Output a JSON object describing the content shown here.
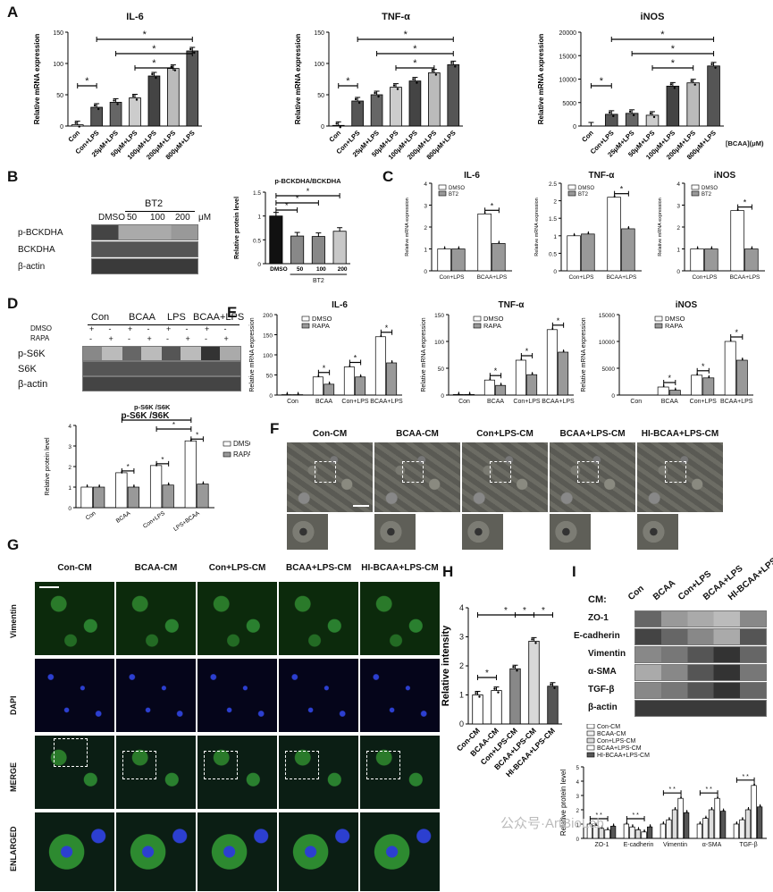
{
  "panels": {
    "A": "A",
    "B": "B",
    "C": "C",
    "D": "D",
    "E": "E",
    "F": "F",
    "G": "G",
    "H": "H",
    "I": "I"
  },
  "colors": {
    "bar_dark": "#555555",
    "bar_light": "#c8c8c8",
    "bar_white": "#ffffff",
    "bar_black": "#111111",
    "green": "#2f9a3a",
    "blue": "#2a3fd8"
  },
  "panelA": {
    "charts": [
      {
        "title": "IL-6",
        "ylabel": "Relative mRNA expression",
        "categories": [
          "Con",
          "Con+LPS",
          "25μM+LPS",
          "50μM+LPS",
          "100μM+LPS",
          "200μM+LPS",
          "800μM+LPS"
        ],
        "values": [
          2,
          30,
          38,
          45,
          80,
          92,
          120
        ],
        "ylim": [
          0,
          150
        ],
        "yticks": [
          0,
          50,
          100,
          150
        ],
        "sig": "*"
      },
      {
        "title": "TNF-α",
        "ylabel": "Relative mRNA expression",
        "categories": [
          "Con",
          "Con+LPS",
          "25μM+LPS",
          "50μM+LPS",
          "100μM+LPS",
          "200μM+LPS",
          "800μM+LPS"
        ],
        "values": [
          1,
          40,
          50,
          62,
          72,
          85,
          98
        ],
        "ylim": [
          0,
          150
        ],
        "yticks": [
          0,
          50,
          100,
          150
        ],
        "sig": "*"
      },
      {
        "title": "iNOS",
        "ylabel": "Relative mRNA expression",
        "categories": [
          "Con",
          "Con+LPS",
          "25μM+LPS",
          "50μM+LPS",
          "100μM+LPS",
          "200μM+LPS",
          "800μM+LPS"
        ],
        "values": [
          0,
          2500,
          2700,
          2300,
          8500,
          9200,
          12800
        ],
        "ylim": [
          0,
          20000
        ],
        "yticks": [
          0,
          5000,
          10000,
          15000,
          20000
        ],
        "sig": "*",
        "xnote": "[BCAA](μM)"
      }
    ]
  },
  "panelB": {
    "blot_header": "BT2",
    "lanes": [
      "DMSO",
      "50",
      "100",
      "200",
      "μM"
    ],
    "rows": [
      "p-BCKDHA",
      "BCKDHA",
      "β-actin"
    ],
    "chart": {
      "title": "p-BCKDHA/BCKDHA",
      "ylabel": "Relative protein level",
      "categories": [
        "DMSO",
        "50",
        "100",
        "200"
      ],
      "values": [
        1.0,
        0.58,
        0.57,
        0.68
      ],
      "ylim": [
        0,
        1.5
      ],
      "yticks": [
        0,
        0.5,
        1.0,
        1.5
      ],
      "xgroup": "BT2",
      "sig": "*"
    }
  },
  "panelC": {
    "charts": [
      {
        "title": "IL-6",
        "ylabel": "Relative mRNA expression",
        "groups": [
          "Con+LPS",
          "BCAA+LPS"
        ],
        "series": [
          {
            "name": "DMSO",
            "values": [
              1.0,
              2.6
            ]
          },
          {
            "name": "BT2",
            "values": [
              1.0,
              1.25
            ]
          }
        ],
        "ylim": [
          0,
          4
        ],
        "yticks": [
          0,
          1,
          2,
          3,
          4
        ],
        "sig": "*"
      },
      {
        "title": "TNF-α",
        "ylabel": "Relative mRNA expression",
        "groups": [
          "Con+LPS",
          "BCAA+LPS"
        ],
        "series": [
          {
            "name": "DMSO",
            "values": [
              1.0,
              2.1
            ]
          },
          {
            "name": "BT2",
            "values": [
              1.05,
              1.2
            ]
          }
        ],
        "ylim": [
          0,
          2.5
        ],
        "yticks": [
          0.0,
          0.5,
          1.0,
          1.5,
          2.0,
          2.5
        ],
        "sig": "*"
      },
      {
        "title": "iNOS",
        "ylabel": "Relative mRNA expression",
        "groups": [
          "Con+LPS",
          "BCAA+LPS"
        ],
        "series": [
          {
            "name": "DMSO",
            "values": [
              1.0,
              2.75
            ]
          },
          {
            "name": "BT2",
            "values": [
              1.0,
              1.0
            ]
          }
        ],
        "ylim": [
          0,
          4
        ],
        "yticks": [
          0,
          1,
          2,
          3,
          4
        ],
        "sig": "*"
      }
    ]
  },
  "panelD": {
    "groups": [
      "Con",
      "BCAA",
      "LPS",
      "BCAA+LPS"
    ],
    "treat": [
      "DMSO",
      "RAPA"
    ],
    "signs": {
      "DMSO": [
        "+",
        "-",
        "+",
        "-",
        "+",
        "-",
        "+",
        "-"
      ],
      "RAPA": [
        "-",
        "+",
        "-",
        "+",
        "-",
        "+",
        "-",
        "+"
      ]
    },
    "rows": [
      "p-S6K",
      "S6K",
      "β-actin"
    ],
    "chart": {
      "title": "p-S6K /S6K",
      "ylabel": "Relative protein level",
      "groups": [
        "Con",
        "BCAA",
        "Con+LPS",
        "LPS+BCAA"
      ],
      "series": [
        {
          "name": "DMSO",
          "values": [
            1.0,
            1.7,
            2.05,
            3.25
          ]
        },
        {
          "name": "RAPA",
          "values": [
            1.0,
            1.0,
            1.1,
            1.15
          ]
        }
      ],
      "ylim": [
        0,
        4
      ],
      "yticks": [
        0,
        1,
        2,
        3,
        4
      ],
      "sig": "*"
    }
  },
  "panelE": {
    "charts": [
      {
        "title": "IL-6",
        "ylabel": "Relative mRNA expression",
        "groups": [
          "Con",
          "BCAA",
          "Con+LPS",
          "BCAA+LPS"
        ],
        "series": [
          {
            "name": "DMSO",
            "values": [
              1,
              45,
              70,
              145
            ]
          },
          {
            "name": "RAPA",
            "values": [
              1,
              27,
              45,
              80
            ]
          }
        ],
        "ylim": [
          0,
          200
        ],
        "yticks": [
          0,
          50,
          100,
          150,
          200
        ],
        "sig": "*"
      },
      {
        "title": "TNF-α",
        "ylabel": "Relative mRNA expression",
        "groups": [
          "Con",
          "BCAA",
          "Con+LPS",
          "BCAA+LPS"
        ],
        "series": [
          {
            "name": "DMSO",
            "values": [
              1,
              28,
              65,
              122
            ]
          },
          {
            "name": "RAPA",
            "values": [
              1,
              18,
              38,
              80
            ]
          }
        ],
        "ylim": [
          0,
          150
        ],
        "yticks": [
          0,
          50,
          100,
          150
        ],
        "sig": "*"
      },
      {
        "title": "iNOS",
        "ylabel": "Relative mRNA expression",
        "groups": [
          "Con",
          "BCAA",
          "Con+LPS",
          "BCAA+LPS"
        ],
        "series": [
          {
            "name": "DMSO",
            "values": [
              0,
              1500,
              3700,
              10000
            ]
          },
          {
            "name": "RAPA",
            "values": [
              0,
              900,
              3200,
              6500
            ]
          }
        ],
        "ylim": [
          0,
          15000
        ],
        "yticks": [
          0,
          5000,
          10000,
          15000
        ],
        "sig": "*"
      }
    ]
  },
  "panelF": {
    "labels": [
      "Con-CM",
      "BCAA-CM",
      "Con+LPS-CM",
      "BCAA+LPS-CM",
      "HI-BCAA+LPS-CM"
    ]
  },
  "panelG": {
    "labels": [
      "Con-CM",
      "BCAA-CM",
      "Con+LPS-CM",
      "BCAA+LPS-CM",
      "HI-BCAA+LPS-CM"
    ],
    "rows": [
      "Vimentin",
      "DAPI",
      "MERGE",
      "ENLARGED"
    ]
  },
  "panelH": {
    "ylabel": "Relative intensity",
    "categories": [
      "Con-CM",
      "BCAA-CM",
      "Con+LPS-CM",
      "BCAA+LPS-CM",
      "HI-BCAA+LPS-CM"
    ],
    "values": [
      1.0,
      1.15,
      1.9,
      2.85,
      1.3
    ],
    "ylim": [
      0,
      4
    ],
    "yticks": [
      0,
      1,
      2,
      3,
      4
    ],
    "sig": "*"
  },
  "panelI": {
    "cm_label": "CM:",
    "lanes": [
      "Con",
      "BCAA",
      "Con+LPS",
      "BCAA+LPS",
      "HI-BCAA+LPS"
    ],
    "rows": [
      "ZO-1",
      "E-cadherin",
      "Vimentin",
      "α-SMA",
      "TGF-β",
      "β-actin"
    ],
    "chart": {
      "ylabel": "Relative protein level",
      "groups": [
        "ZO-1",
        "E-cadherin",
        "Vimentin",
        "α-SMA",
        "TGF-β"
      ],
      "series": [
        {
          "name": "Con-CM",
          "values": [
            1.0,
            1.0,
            1.0,
            1.0,
            1.0
          ]
        },
        {
          "name": "BCAA-CM",
          "values": [
            0.9,
            0.8,
            1.3,
            1.4,
            1.3
          ]
        },
        {
          "name": "Con+LPS-CM",
          "values": [
            0.7,
            0.6,
            2.0,
            2.0,
            2.0
          ]
        },
        {
          "name": "BCAA+LPS-CM",
          "values": [
            0.6,
            0.45,
            2.8,
            2.8,
            3.7
          ]
        },
        {
          "name": "HI-BCAA+LPS-CM",
          "values": [
            0.85,
            0.8,
            1.8,
            1.9,
            2.2
          ]
        }
      ],
      "ylim": [
        0,
        5
      ],
      "yticks": [
        0,
        1,
        2,
        3,
        4,
        5
      ],
      "sig": "*"
    }
  },
  "watermark": "公众号·ArtBioLab"
}
